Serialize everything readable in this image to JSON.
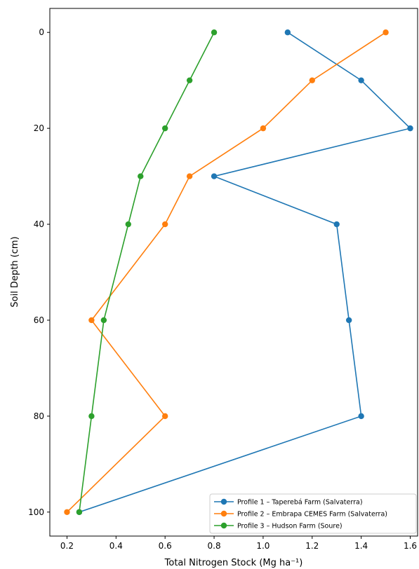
{
  "chart_data": {
    "type": "line",
    "title": "",
    "xlabel": "Total Nitrogen Stock (Mg ha⁻¹)",
    "ylabel": "Soil Depth (cm)",
    "xlim": [
      0.13,
      1.63
    ],
    "ylim": [
      105,
      -5
    ],
    "y_inverted": true,
    "x_ticks": [
      0.2,
      0.4,
      0.6,
      0.8,
      1.0,
      1.2,
      1.4,
      1.6
    ],
    "x_tick_labels": [
      "0.2",
      "0.4",
      "0.6",
      "0.8",
      "1.0",
      "1.2",
      "1.4",
      "1.6"
    ],
    "y_ticks": [
      0,
      20,
      40,
      60,
      80,
      100
    ],
    "y_tick_labels": [
      "0",
      "20",
      "40",
      "60",
      "80",
      "100"
    ],
    "grid": false,
    "legend_position": "bottom-right",
    "depths": [
      0,
      10,
      20,
      30,
      40,
      60,
      80,
      100
    ],
    "series": [
      {
        "name": "Profile 1 – Taperebá Farm (Salvaterra)",
        "color": "#1f77b4",
        "x": [
          1.1,
          1.4,
          1.6,
          0.8,
          1.3,
          1.35,
          1.4,
          0.25
        ]
      },
      {
        "name": "Profile 2 – Embrapa CEMES Farm (Salvaterra)",
        "color": "#ff7f0e",
        "x": [
          1.5,
          1.2,
          1.0,
          0.7,
          0.6,
          0.3,
          0.6,
          0.2
        ]
      },
      {
        "name": "Profile 3 – Hudson Farm (Soure)",
        "color": "#2ca02c",
        "x": [
          0.8,
          0.7,
          0.6,
          0.5,
          0.45,
          0.35,
          0.3,
          0.25
        ]
      }
    ]
  }
}
